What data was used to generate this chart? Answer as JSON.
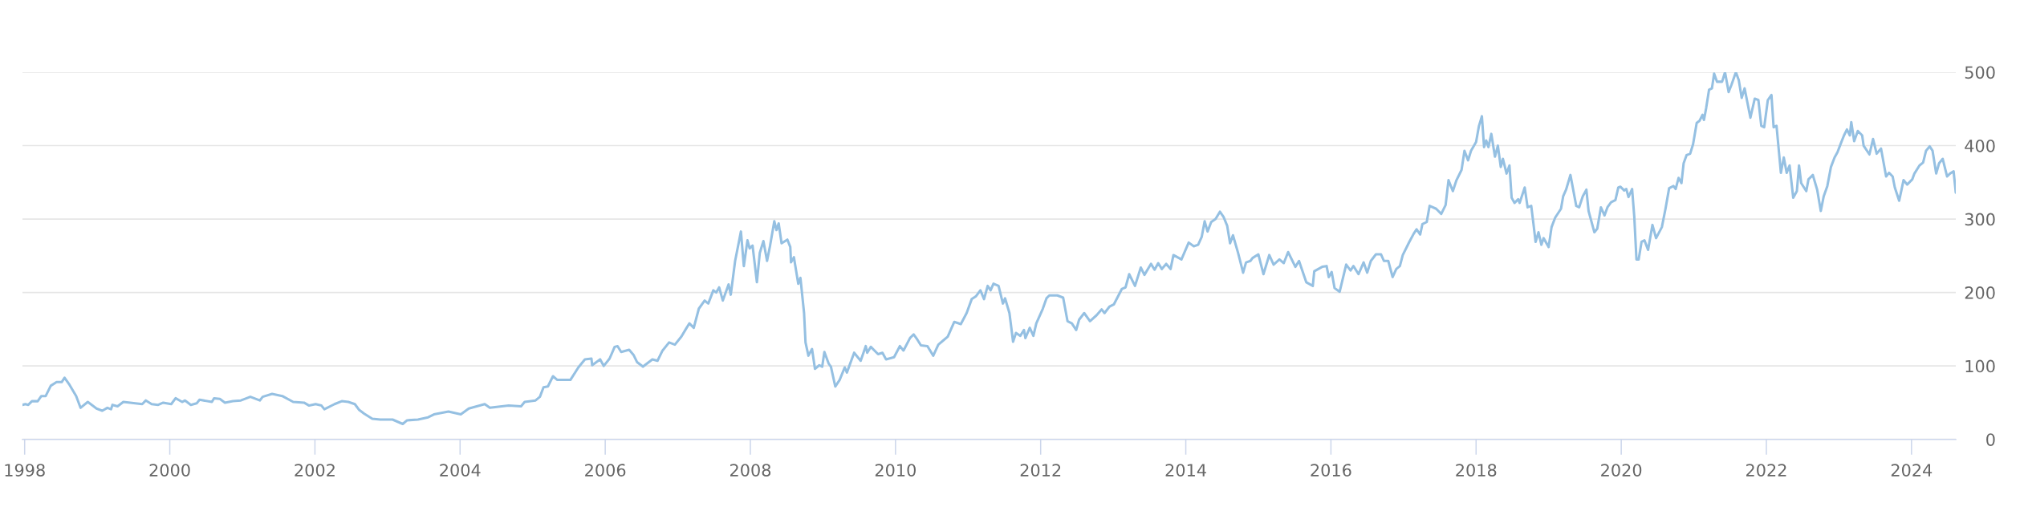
{
  "chart_data": {
    "type": "line",
    "x": [
      1997.97,
      1998.01,
      1998.05,
      1998.1,
      1998.18,
      1998.23,
      1998.29,
      1998.36,
      1998.44,
      1998.51,
      1998.55,
      1998.62,
      1998.71,
      1998.77,
      1998.87,
      1998.99,
      1999.07,
      1999.14,
      1999.19,
      1999.21,
      1999.28,
      1999.36,
      1999.62,
      1999.67,
      1999.75,
      1999.84,
      1999.91,
      2000.02,
      2000.08,
      2000.17,
      2000.21,
      2000.29,
      2000.37,
      2000.41,
      2000.58,
      2000.61,
      2000.69,
      2000.76,
      2000.87,
      2000.98,
      2001.11,
      2001.24,
      2001.28,
      2001.41,
      2001.55,
      2001.7,
      2001.85,
      2001.92,
      2002.01,
      2002.09,
      2002.13,
      2002.27,
      2002.37,
      2002.46,
      2002.55,
      2002.61,
      2002.68,
      2002.79,
      2002.9,
      2003.07,
      2003.14,
      2003.21,
      2003.27,
      2003.42,
      2003.56,
      2003.64,
      2003.84,
      2004.01,
      2004.12,
      2004.23,
      2004.34,
      2004.41,
      2004.67,
      2004.84,
      2004.89,
      2005.04,
      2005.1,
      2005.15,
      2005.21,
      2005.28,
      2005.34,
      2005.52,
      2005.63,
      2005.72,
      2005.81,
      2005.82,
      2005.93,
      2005.98,
      2006.06,
      2006.13,
      2006.17,
      2006.22,
      2006.33,
      2006.39,
      2006.44,
      2006.52,
      2006.65,
      2006.72,
      2006.79,
      2006.88,
      2006.96,
      2007.05,
      2007.11,
      2007.16,
      2007.22,
      2007.29,
      2007.37,
      2007.42,
      2007.49,
      2007.53,
      2007.57,
      2007.62,
      2007.7,
      2007.73,
      2007.79,
      2007.87,
      2007.91,
      2007.96,
      2007.99,
      2008.03,
      2008.09,
      2008.13,
      2008.18,
      2008.23,
      2008.27,
      2008.33,
      2008.36,
      2008.39,
      2008.43,
      2008.51,
      2008.55,
      2008.56,
      2008.6,
      2008.66,
      2008.69,
      2008.74,
      2008.76,
      2008.8,
      2008.85,
      2008.89,
      2008.95,
      2008.99,
      2009.02,
      2009.08,
      2009.11,
      2009.17,
      2009.23,
      2009.3,
      2009.33,
      2009.43,
      2009.52,
      2009.59,
      2009.61,
      2009.66,
      2009.76,
      2009.82,
      2009.87,
      2009.98,
      2010.06,
      2010.11,
      2010.2,
      2010.25,
      2010.3,
      2010.35,
      2010.44,
      2010.52,
      2010.59,
      2010.65,
      2010.72,
      2010.76,
      2010.81,
      2010.9,
      2010.98,
      2011.05,
      2011.11,
      2011.17,
      2011.22,
      2011.27,
      2011.31,
      2011.35,
      2011.42,
      2011.48,
      2011.51,
      2011.57,
      2011.62,
      2011.66,
      2011.72,
      2011.77,
      2011.79,
      2011.85,
      2011.9,
      2011.94,
      2012.03,
      2012.08,
      2012.12,
      2012.23,
      2012.31,
      2012.37,
      2012.43,
      2012.49,
      2012.53,
      2012.6,
      2012.68,
      2012.77,
      2012.84,
      2012.88,
      2012.95,
      2013.01,
      2013.12,
      2013.17,
      2013.22,
      2013.3,
      2013.38,
      2013.43,
      2013.52,
      2013.57,
      2013.62,
      2013.67,
      2013.73,
      2013.79,
      2013.83,
      2013.94,
      2014.04,
      2014.11,
      2014.17,
      2014.22,
      2014.26,
      2014.3,
      2014.35,
      2014.41,
      2014.47,
      2014.52,
      2014.57,
      2014.61,
      2014.65,
      2014.72,
      2014.79,
      2014.83,
      2014.89,
      2014.92,
      2015.0,
      2015.07,
      2015.15,
      2015.21,
      2015.29,
      2015.35,
      2015.41,
      2015.51,
      2015.56,
      2015.66,
      2015.75,
      2015.77,
      2015.88,
      2015.94,
      2015.97,
      2016.01,
      2016.05,
      2016.12,
      2016.21,
      2016.27,
      2016.31,
      2016.38,
      2016.45,
      2016.5,
      2016.55,
      2016.62,
      2016.69,
      2016.73,
      2016.79,
      2016.85,
      2016.9,
      2016.95,
      2016.99,
      2017.08,
      2017.14,
      2017.18,
      2017.23,
      2017.26,
      2017.32,
      2017.36,
      2017.45,
      2017.52,
      2017.58,
      2017.62,
      2017.68,
      2017.73,
      2017.8,
      2017.84,
      2017.89,
      2017.93,
      2018.0,
      2018.04,
      2018.08,
      2018.11,
      2018.14,
      2018.17,
      2018.21,
      2018.26,
      2018.3,
      2018.34,
      2018.37,
      2018.42,
      2018.46,
      2018.49,
      2018.53,
      2018.58,
      2018.6,
      2018.63,
      2018.67,
      2018.71,
      2018.76,
      2018.79,
      2018.82,
      2018.86,
      2018.9,
      2018.93,
      2019.0,
      2019.04,
      2019.09,
      2019.17,
      2019.2,
      2019.24,
      2019.3,
      2019.38,
      2019.42,
      2019.47,
      2019.52,
      2019.55,
      2019.63,
      2019.67,
      2019.72,
      2019.77,
      2019.81,
      2019.86,
      2019.92,
      2019.96,
      2019.99,
      2020.04,
      2020.07,
      2020.1,
      2020.15,
      2020.18,
      2020.21,
      2020.24,
      2020.28,
      2020.32,
      2020.37,
      2020.43,
      2020.48,
      2020.56,
      2020.61,
      2020.66,
      2020.72,
      2020.75,
      2020.79,
      2020.83,
      2020.86,
      2020.9,
      2020.95,
      2020.99,
      2021.04,
      2021.08,
      2021.12,
      2021.14,
      2021.17,
      2021.21,
      2021.25,
      2021.28,
      2021.32,
      2021.39,
      2021.43,
      2021.48,
      2021.52,
      2021.58,
      2021.62,
      2021.66,
      2021.7,
      2021.78,
      2021.84,
      2021.89,
      2021.93,
      2021.97,
      2022.02,
      2022.07,
      2022.1,
      2022.14,
      2022.2,
      2022.24,
      2022.28,
      2022.32,
      2022.37,
      2022.42,
      2022.45,
      2022.48,
      2022.55,
      2022.58,
      2022.64,
      2022.7,
      2022.75,
      2022.79,
      2022.84,
      2022.89,
      2022.94,
      2022.98,
      2023.03,
      2023.07,
      2023.11,
      2023.15,
      2023.17,
      2023.21,
      2023.26,
      2023.32,
      2023.34,
      2023.42,
      2023.47,
      2023.52,
      2023.58,
      2023.65,
      2023.69,
      2023.74,
      2023.77,
      2023.83,
      2023.89,
      2023.94,
      2024.01,
      2024.04,
      2024.11,
      2024.16,
      2024.2,
      2024.25,
      2024.29,
      2024.34,
      2024.38,
      2024.43,
      2024.49,
      2024.53,
      2024.58,
      2024.61
    ],
    "values": [
      47,
      48,
      47,
      52,
      52,
      59,
      59,
      73,
      78,
      78,
      84,
      74,
      59,
      43,
      51,
      42,
      39,
      43,
      41,
      47,
      45,
      51,
      48,
      53,
      48,
      47,
      50,
      48,
      56,
      51,
      53,
      47,
      49,
      54,
      51,
      56,
      55,
      50,
      52,
      53,
      58,
      53,
      58,
      62,
      59,
      51,
      50,
      46,
      48,
      46,
      41,
      48,
      52,
      51,
      48,
      40,
      35,
      28,
      27,
      27,
      24,
      21,
      26,
      27,
      30,
      34,
      38,
      34,
      42,
      45,
      48,
      43,
      46,
      45,
      51,
      53,
      58,
      71,
      72,
      86,
      81,
      81,
      98,
      109,
      110,
      101,
      109,
      100,
      110,
      126,
      127,
      119,
      122,
      115,
      105,
      99,
      109,
      107,
      121,
      132,
      129,
      140,
      150,
      158,
      152,
      178,
      189,
      185,
      203,
      200,
      207,
      189,
      211,
      197,
      243,
      283,
      236,
      271,
      260,
      264,
      214,
      254,
      270,
      243,
      263,
      297,
      285,
      294,
      267,
      272,
      262,
      241,
      248,
      212,
      220,
      172,
      132,
      114,
      123,
      96,
      101,
      99,
      119,
      103,
      99,
      72,
      81,
      98,
      91,
      118,
      107,
      127,
      118,
      126,
      116,
      118,
      109,
      112,
      127,
      121,
      138,
      143,
      136,
      128,
      127,
      114,
      129,
      134,
      140,
      149,
      160,
      157,
      172,
      191,
      195,
      203,
      191,
      209,
      203,
      212,
      209,
      185,
      192,
      172,
      133,
      145,
      141,
      149,
      138,
      152,
      141,
      158,
      178,
      192,
      196,
      196,
      193,
      161,
      158,
      149,
      163,
      172,
      161,
      169,
      177,
      172,
      181,
      184,
      205,
      207,
      225,
      209,
      234,
      224,
      239,
      231,
      240,
      232,
      239,
      232,
      251,
      245,
      268,
      263,
      265,
      276,
      297,
      283,
      296,
      300,
      310,
      303,
      291,
      267,
      278,
      254,
      227,
      241,
      243,
      247,
      252,
      225,
      251,
      238,
      245,
      240,
      255,
      235,
      243,
      214,
      209,
      229,
      235,
      236,
      221,
      228,
      206,
      201,
      238,
      230,
      236,
      225,
      241,
      227,
      243,
      252,
      252,
      243,
      243,
      221,
      232,
      236,
      251,
      269,
      280,
      286,
      279,
      293,
      296,
      318,
      314,
      307,
      319,
      353,
      338,
      353,
      367,
      393,
      380,
      393,
      405,
      427,
      440,
      398,
      407,
      398,
      416,
      385,
      400,
      371,
      382,
      362,
      373,
      329,
      322,
      327,
      322,
      331,
      343,
      316,
      318,
      294,
      269,
      282,
      265,
      274,
      262,
      289,
      302,
      314,
      331,
      340,
      360,
      318,
      316,
      331,
      340,
      311,
      282,
      287,
      316,
      305,
      316,
      323,
      326,
      343,
      344,
      339,
      341,
      330,
      341,
      303,
      245,
      245,
      269,
      271,
      258,
      292,
      274,
      289,
      314,
      342,
      345,
      341,
      356,
      349,
      376,
      387,
      389,
      402,
      431,
      434,
      442,
      435,
      451,
      476,
      478,
      498,
      487,
      487,
      500,
      473,
      483,
      500,
      489,
      465,
      478,
      438,
      464,
      462,
      427,
      425,
      462,
      469,
      425,
      427,
      363,
      384,
      363,
      373,
      329,
      338,
      373,
      349,
      338,
      354,
      360,
      340,
      311,
      331,
      345,
      371,
      384,
      391,
      404,
      414,
      422,
      414,
      432,
      406,
      420,
      414,
      400,
      388,
      409,
      389,
      396,
      358,
      363,
      358,
      343,
      325,
      353,
      347,
      354,
      362,
      373,
      377,
      393,
      399,
      393,
      362,
      376,
      382,
      358,
      362,
      365,
      336
    ],
    "color": "#95c0e2",
    "xlim": [
      1997.97,
      2024.61
    ],
    "xticks": [
      1998,
      2000,
      2002,
      2004,
      2006,
      2008,
      2010,
      2012,
      2014,
      2016,
      2018,
      2020,
      2022,
      2024
    ],
    "ylim": [
      0,
      500
    ],
    "yticks": [
      0,
      100,
      200,
      300,
      400,
      500
    ],
    "grid": "y"
  }
}
